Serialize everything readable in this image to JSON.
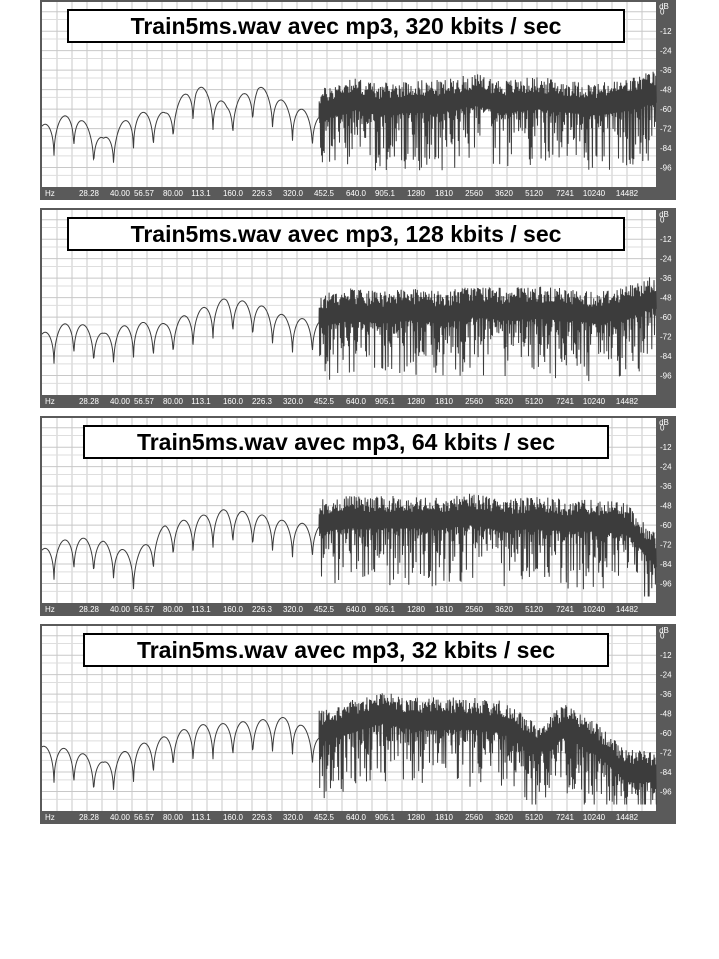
{
  "chart_data": [
    {
      "type": "line",
      "title": "Train5ms.wav avec mp3, 320 kbits / sec",
      "x_unit": "Hz",
      "y_unit": "dB",
      "x_ticks": [
        "28.28",
        "40.00",
        "56.57",
        "80.00",
        "113.1",
        "160.0",
        "226.3",
        "320.0",
        "452.5",
        "640.0",
        "905.1",
        "1280",
        "1810",
        "2560",
        "3620",
        "5120",
        "7241",
        "10240",
        "14482"
      ],
      "y_ticks": [
        "0",
        "-12",
        "-24",
        "-36",
        "-48",
        "-60",
        "-72",
        "-84",
        "-96"
      ],
      "ylim": [
        -108,
        6
      ],
      "grid": true,
      "x": [
        20,
        28.28,
        40,
        56.57,
        80,
        113.1,
        160,
        226.3,
        320,
        452.5,
        640,
        905.1,
        1280,
        1810,
        2560,
        3620,
        5120,
        7241,
        10240,
        14482,
        20000
      ],
      "y": [
        -70,
        -62,
        -78,
        -62,
        -62,
        -44,
        -57,
        -45,
        -57,
        -64,
        -56,
        -60,
        -58,
        -58,
        -54,
        -58,
        -56,
        -58,
        -60,
        -57,
        -52
      ],
      "noise_from_hz": 452.5
    },
    {
      "type": "line",
      "title": "Train5ms.wav avec mp3, 128 kbits / sec",
      "x_unit": "Hz",
      "y_unit": "dB",
      "x_ticks": [
        "28.28",
        "40.00",
        "56.57",
        "80.00",
        "113.1",
        "160.0",
        "226.3",
        "320.0",
        "452.5",
        "640.0",
        "905.1",
        "1280",
        "1810",
        "2560",
        "3620",
        "5120",
        "7241",
        "10240",
        "14482"
      ],
      "y_ticks": [
        "0",
        "-12",
        "-24",
        "-36",
        "-48",
        "-60",
        "-72",
        "-84",
        "-96"
      ],
      "ylim": [
        -108,
        6
      ],
      "grid": true,
      "x": [
        20,
        28.28,
        40,
        56.57,
        80,
        113.1,
        160,
        226.3,
        320,
        452.5,
        640,
        905.1,
        1280,
        1810,
        2560,
        3620,
        5120,
        7241,
        10240,
        14482,
        20000
      ],
      "y": [
        -70,
        -62,
        -70,
        -63,
        -64,
        -56,
        -48,
        -52,
        -60,
        -62,
        -58,
        -60,
        -58,
        -60,
        -56,
        -58,
        -57,
        -58,
        -60,
        -56,
        -50
      ],
      "noise_from_hz": 452.5
    },
    {
      "type": "line",
      "title": "Train5ms.wav avec mp3, 64 kbits / sec",
      "x_unit": "Hz",
      "y_unit": "dB",
      "x_ticks": [
        "28.28",
        "40.00",
        "56.57",
        "80.00",
        "113.1",
        "160.0",
        "226.3",
        "320.0",
        "452.5",
        "640.0",
        "905.1",
        "1280",
        "1810",
        "2560",
        "3620",
        "5120",
        "7241",
        "10240",
        "14482"
      ],
      "y_ticks": [
        "0",
        "-12",
        "-24",
        "-36",
        "-48",
        "-60",
        "-72",
        "-84",
        "-96"
      ],
      "ylim": [
        -108,
        6
      ],
      "grid": true,
      "x": [
        20,
        28.28,
        40,
        56.57,
        80,
        113.1,
        160,
        226.3,
        320,
        452.5,
        640,
        905.1,
        1280,
        1810,
        2560,
        3620,
        5120,
        7241,
        10240,
        14482,
        20000
      ],
      "y": [
        -75,
        -67,
        -70,
        -78,
        -60,
        -55,
        -50,
        -53,
        -58,
        -60,
        -58,
        -58,
        -58,
        -58,
        -56,
        -60,
        -58,
        -60,
        -60,
        -62,
        -82
      ],
      "noise_from_hz": 452.5
    },
    {
      "type": "line",
      "title": "Train5ms.wav avec mp3, 32 kbits / sec",
      "x_unit": "Hz",
      "y_unit": "dB",
      "x_ticks": [
        "28.28",
        "40.00",
        "56.57",
        "80.00",
        "113.1",
        "160.0",
        "226.3",
        "320.0",
        "452.5",
        "640.0",
        "905.1",
        "1280",
        "1810",
        "2560",
        "3620",
        "5120",
        "7241",
        "10240",
        "14482"
      ],
      "y_ticks": [
        "0",
        "-12",
        "-24",
        "-36",
        "-48",
        "-60",
        "-72",
        "-84",
        "-96"
      ],
      "ylim": [
        -108,
        6
      ],
      "grid": true,
      "x": [
        20,
        28.28,
        40,
        56.57,
        80,
        113.1,
        160,
        226.3,
        320,
        452.5,
        640,
        905.1,
        1280,
        1810,
        2560,
        3620,
        5120,
        7241,
        10240,
        14482,
        20000
      ],
      "y": [
        -68,
        -70,
        -78,
        -68,
        -62,
        -55,
        -54,
        -52,
        -50,
        -62,
        -56,
        -50,
        -54,
        -54,
        -54,
        -56,
        -70,
        -58,
        -70,
        -86,
        -86
      ],
      "noise_from_hz": 452.5
    }
  ]
}
